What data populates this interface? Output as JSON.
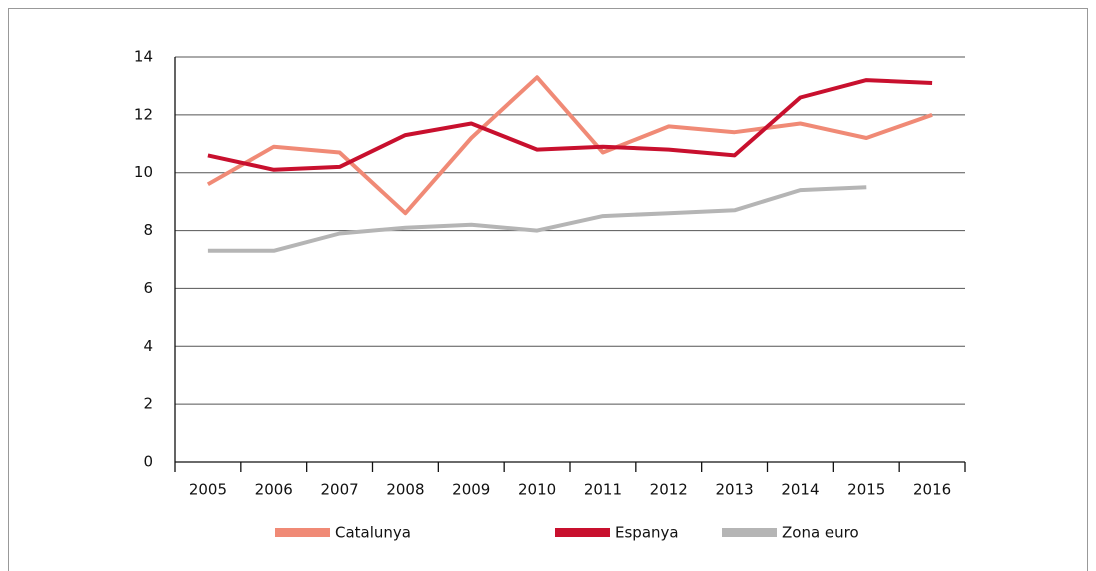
{
  "chart_data": {
    "type": "line",
    "categories": [
      "2005",
      "2006",
      "2007",
      "2008",
      "2009",
      "2010",
      "2011",
      "2012",
      "2013",
      "2014",
      "2015",
      "2016"
    ],
    "series": [
      {
        "name": "Catalunya",
        "color": "#f08a76",
        "values": [
          9.6,
          10.9,
          10.7,
          8.6,
          11.2,
          13.3,
          10.7,
          11.6,
          11.4,
          11.7,
          11.2,
          12.0
        ]
      },
      {
        "name": "Espanya",
        "color": "#c8102e",
        "values": [
          10.6,
          10.1,
          10.2,
          11.3,
          11.7,
          10.8,
          10.9,
          10.8,
          10.6,
          12.6,
          13.2,
          13.1
        ]
      },
      {
        "name": "Zona euro",
        "color": "#b5b5b5",
        "values": [
          7.3,
          7.3,
          7.9,
          8.1,
          8.2,
          8.0,
          8.5,
          8.6,
          8.7,
          9.4,
          9.5,
          null
        ]
      }
    ],
    "ylim": [
      0,
      14
    ],
    "yticks": [
      0,
      2,
      4,
      6,
      8,
      10,
      12,
      14
    ],
    "grid": true,
    "legend": "bottom"
  }
}
